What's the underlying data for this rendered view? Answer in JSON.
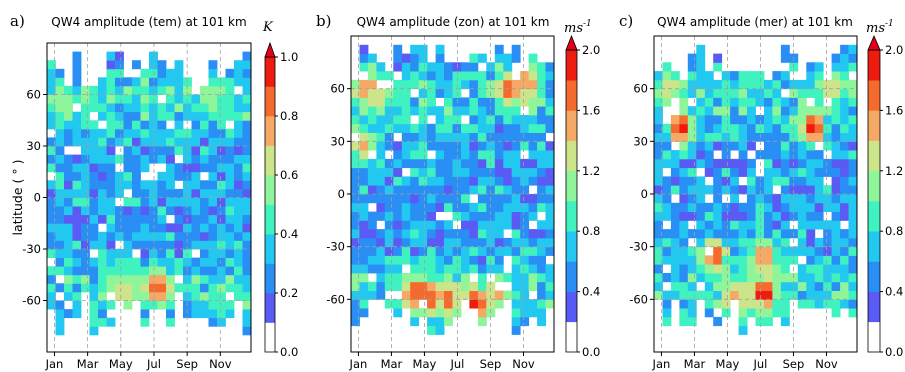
{
  "chart_data": [
    {
      "type": "heatmap",
      "panel_label": "a)",
      "title": "QW4 amplitude (tem) at 101 km",
      "ylabel": "latitude ( ° )",
      "xlabel": "",
      "x_ticks": [
        "Jan",
        "Mar",
        "May",
        "Jul",
        "Sep",
        "Nov"
      ],
      "y_ticks": [
        "60",
        "30",
        "0",
        "-30",
        "-60"
      ],
      "ylim": [
        -90,
        90
      ],
      "colorbar": {
        "unit": "K",
        "min": 0.0,
        "max": 1.0,
        "ticks": [
          "0.0",
          "0.2",
          "0.4",
          "0.6",
          "0.8",
          "1.0"
        ],
        "extend": "max"
      },
      "grid": true,
      "hotspots": [
        {
          "month": 7.3,
          "lat": -52,
          "value": 0.95
        },
        {
          "month": 5.2,
          "lat": -53,
          "value": 0.7
        },
        {
          "month": 4.5,
          "lat": -50,
          "value": 0.6
        },
        {
          "month": 6.3,
          "lat": -55,
          "value": 0.6
        },
        {
          "month": 1.5,
          "lat": 55,
          "value": 0.55
        },
        {
          "month": 10.5,
          "lat": 58,
          "value": 0.55
        },
        {
          "month": 11.5,
          "lat": 55,
          "value": 0.5
        }
      ]
    },
    {
      "type": "heatmap",
      "panel_label": "b)",
      "title": "QW4 amplitude (zon) at 101 km",
      "ylabel": "",
      "xlabel": "",
      "x_ticks": [
        "Jan",
        "Mar",
        "May",
        "Jul",
        "Sep",
        "Nov"
      ],
      "y_ticks": [
        "60",
        "30",
        "0",
        "-30",
        "-60"
      ],
      "ylim": [
        -90,
        90
      ],
      "colorbar": {
        "unit": "ms^-1",
        "min": 0.0,
        "max": 2.0,
        "ticks": [
          "0.0",
          "0.4",
          "0.8",
          "1.2",
          "1.6",
          "2.0"
        ],
        "extend": "max"
      },
      "grid": true,
      "hotspots": [
        {
          "month": 8.2,
          "lat": -63,
          "value": 2.0
        },
        {
          "month": 5.2,
          "lat": -58,
          "value": 1.9
        },
        {
          "month": 4.3,
          "lat": -57,
          "value": 1.8
        },
        {
          "month": 6.5,
          "lat": -60,
          "value": 1.7
        },
        {
          "month": 10.2,
          "lat": 60,
          "value": 1.8
        },
        {
          "month": 11.2,
          "lat": 63,
          "value": 1.6
        },
        {
          "month": 1.5,
          "lat": 60,
          "value": 1.6
        },
        {
          "month": 1.3,
          "lat": 28,
          "value": 1.5
        },
        {
          "month": 9.5,
          "lat": -55,
          "value": 1.5
        },
        {
          "month": 2.3,
          "lat": 55,
          "value": 1.3
        }
      ]
    },
    {
      "type": "heatmap",
      "panel_label": "c)",
      "title": "QW4 amplitude (mer) at 101 km",
      "ylabel": "",
      "xlabel": "",
      "x_ticks": [
        "Jan",
        "Mar",
        "May",
        "Jul",
        "Sep",
        "Nov"
      ],
      "y_ticks": [
        "60",
        "30",
        "0",
        "-30",
        "-60"
      ],
      "ylim": [
        -90,
        90
      ],
      "colorbar": {
        "unit": "ms^-1",
        "min": 0.0,
        "max": 2.0,
        "ticks": [
          "0.0",
          "0.4",
          "0.8",
          "1.2",
          "1.6",
          "2.0"
        ],
        "extend": "max"
      },
      "grid": true,
      "hotspots": [
        {
          "month": 2.2,
          "lat": 38,
          "value": 2.0
        },
        {
          "month": 10.2,
          "lat": 38,
          "value": 2.0
        },
        {
          "month": 4.3,
          "lat": -35,
          "value": 1.8
        },
        {
          "month": 7.3,
          "lat": -35,
          "value": 1.7
        },
        {
          "month": 7.3,
          "lat": -57,
          "value": 2.0
        },
        {
          "month": 5.3,
          "lat": -60,
          "value": 1.5
        },
        {
          "month": 6.3,
          "lat": -58,
          "value": 1.4
        },
        {
          "month": 11.2,
          "lat": 62,
          "value": 1.4
        },
        {
          "month": 1.5,
          "lat": 60,
          "value": 1.3
        }
      ]
    }
  ]
}
